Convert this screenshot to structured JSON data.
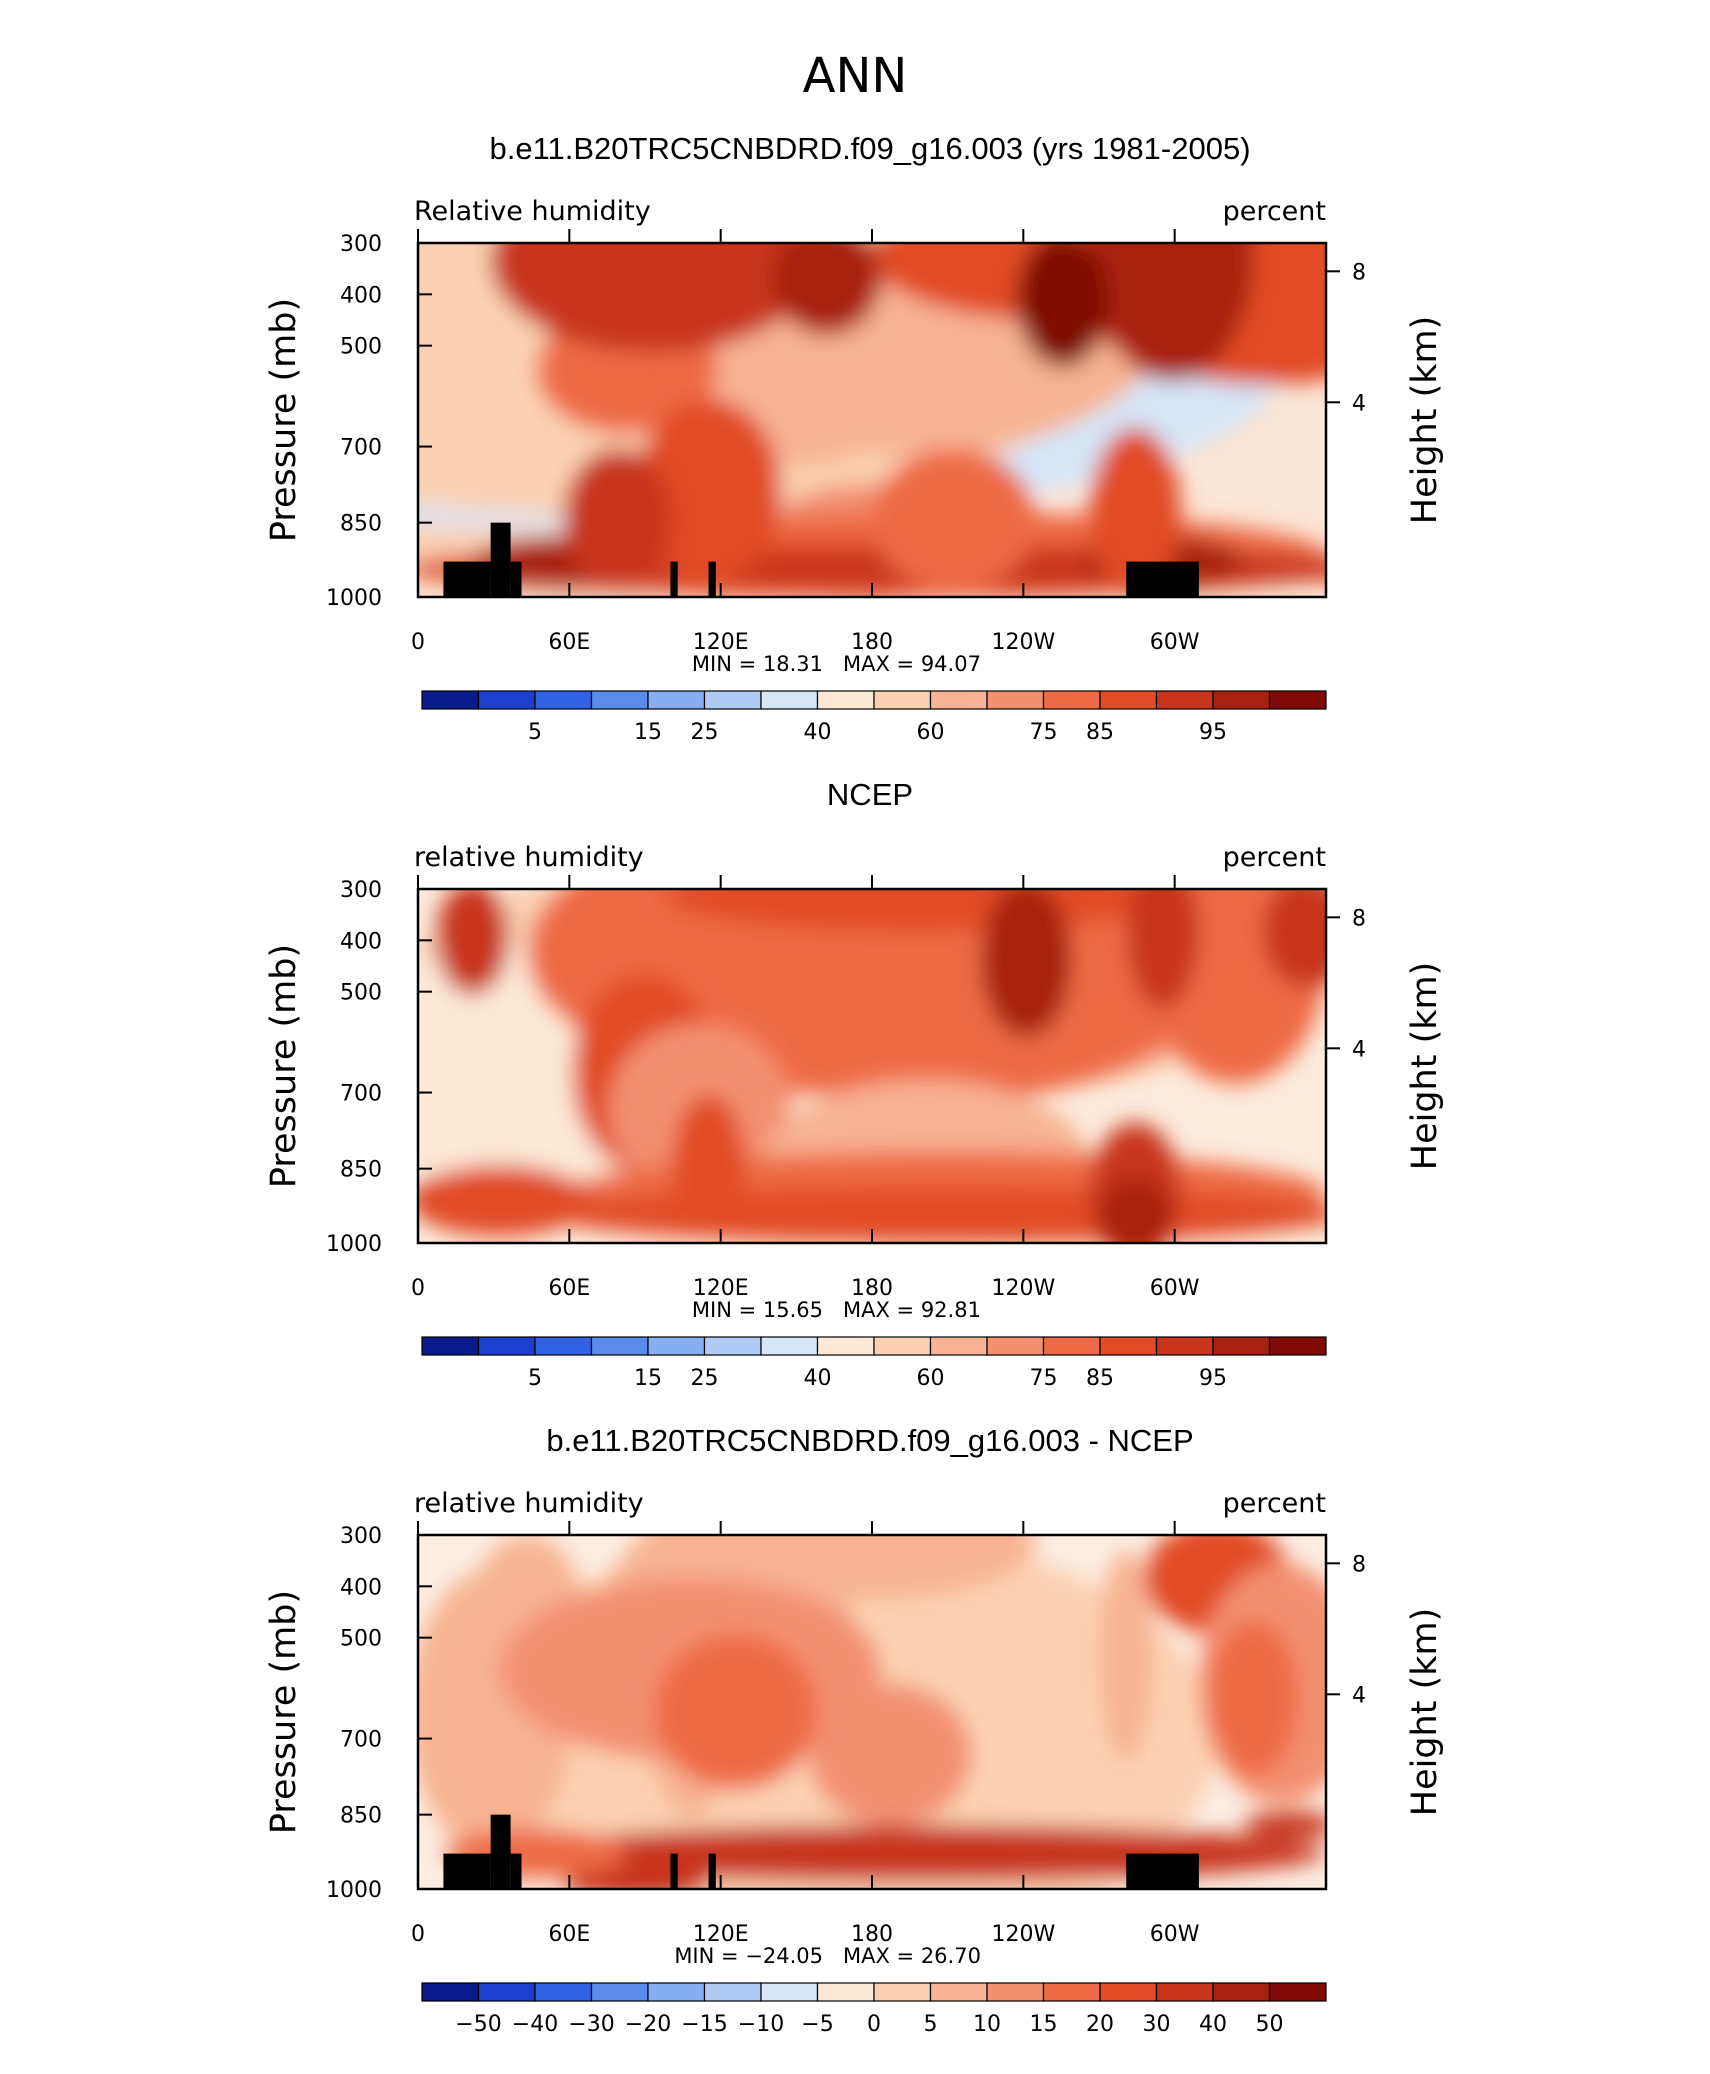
{
  "figure": {
    "title": "ANN"
  },
  "chart_data": [
    {
      "type": "heatmap",
      "title": "b.e11.B20TRC5CNBDRD.f09_g16.003 (yrs 1981-2005)",
      "subtitle_left": "Relative humidity",
      "subtitle_right": "percent",
      "ylabel": "Pressure (mb)",
      "y2label": "Height (km)",
      "x_ticklabels": [
        "0",
        "60E",
        "120E",
        "180",
        "120W",
        "60W"
      ],
      "y_ticklabels": [
        "300",
        "400",
        "500",
        "700",
        "850",
        "1000"
      ],
      "y2_ticklabels": [
        "8",
        "4"
      ],
      "min_text": "MIN =   18.31",
      "max_text": "MAX =   94.07",
      "colorbar_labels": [
        "5",
        "15",
        "25",
        "40",
        "60",
        "75",
        "85",
        "95"
      ],
      "colorbar_colors": [
        "#0a1b8c",
        "#1d3fcf",
        "#2f63e3",
        "#5b8bea",
        "#86aef0",
        "#b0cbf4",
        "#d6e6f8",
        "#fde9d6",
        "#fbd1b4",
        "#f7b393",
        "#f39070",
        "#ee6a45",
        "#e14b26",
        "#c8351b",
        "#a92010",
        "#7f0a06"
      ],
      "x_range": [
        0,
        360
      ],
      "p_range": [
        300,
        1000
      ],
      "orography": true
    },
    {
      "type": "heatmap",
      "title": "NCEP",
      "subtitle_left": "relative humidity",
      "subtitle_right": "percent",
      "ylabel": "Pressure (mb)",
      "y2label": "Height (km)",
      "x_ticklabels": [
        "0",
        "60E",
        "120E",
        "180",
        "120W",
        "60W"
      ],
      "y_ticklabels": [
        "300",
        "400",
        "500",
        "700",
        "850",
        "1000"
      ],
      "y2_ticklabels": [
        "8",
        "4"
      ],
      "min_text": "MIN =   15.65",
      "max_text": "MAX =   92.81",
      "colorbar_labels": [
        "5",
        "15",
        "25",
        "40",
        "60",
        "75",
        "85",
        "95"
      ],
      "colorbar_colors": [
        "#0a1b8c",
        "#1d3fcf",
        "#2f63e3",
        "#5b8bea",
        "#86aef0",
        "#b0cbf4",
        "#d6e6f8",
        "#fde9d6",
        "#fbd1b4",
        "#f7b393",
        "#f39070",
        "#ee6a45",
        "#e14b26",
        "#c8351b",
        "#a92010",
        "#7f0a06"
      ],
      "x_range": [
        0,
        360
      ],
      "p_range": [
        300,
        1000
      ],
      "orography": false
    },
    {
      "type": "heatmap",
      "title": "b.e11.B20TRC5CNBDRD.f09_g16.003 - NCEP",
      "subtitle_left": "relative humidity",
      "subtitle_right": "percent",
      "ylabel": "Pressure (mb)",
      "y2label": "Height (km)",
      "x_ticklabels": [
        "0",
        "60E",
        "120E",
        "180",
        "120W",
        "60W"
      ],
      "y_ticklabels": [
        "300",
        "400",
        "500",
        "700",
        "850",
        "1000"
      ],
      "y2_ticklabels": [
        "8",
        "4"
      ],
      "min_text": "MIN =  −24.05",
      "max_text": "MAX =   26.70",
      "colorbar_labels": [
        "−50",
        "−40",
        "−30",
        "−20",
        "−15",
        "−10",
        "−5",
        "0",
        "5",
        "10",
        "15",
        "20",
        "30",
        "40",
        "50"
      ],
      "colorbar_colors": [
        "#0a1b8c",
        "#1d3fcf",
        "#2f63e3",
        "#5b8bea",
        "#86aef0",
        "#b0cbf4",
        "#d6e6f8",
        "#fde9d6",
        "#fbd1b4",
        "#f7b393",
        "#f39070",
        "#ee6a45",
        "#e14b26",
        "#c8351b",
        "#a92010",
        "#7f0a06"
      ],
      "x_range": [
        0,
        360
      ],
      "p_range": [
        300,
        1000
      ],
      "orography": true
    }
  ]
}
